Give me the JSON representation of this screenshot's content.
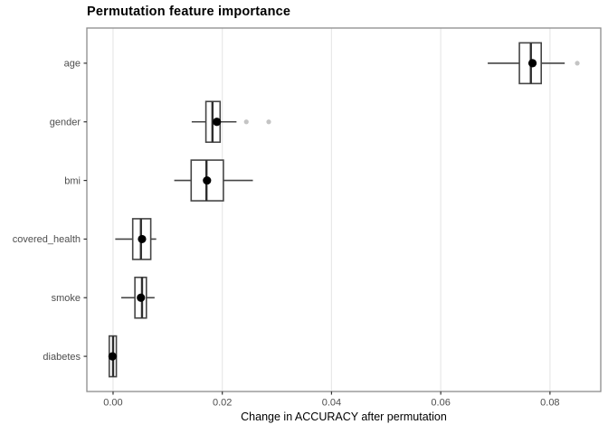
{
  "chart_data": {
    "type": "boxplot",
    "orientation": "horizontal",
    "title": "Permutation feature importance",
    "xlabel": "Change in ACCURACY after permutation",
    "ylabel": "",
    "xlim": [
      -0.0048,
      0.0893
    ],
    "x_ticks": [
      0,
      0.02,
      0.04,
      0.06,
      0.08
    ],
    "x_tick_labels": [
      "0.00",
      "0.02",
      "0.04",
      "0.06",
      "0.08"
    ],
    "grid": "vertical-major-only",
    "legend": "none",
    "categories": [
      "age",
      "gender",
      "bmi",
      "covered_health",
      "smoke",
      "diabetes"
    ],
    "series": [
      {
        "name": "age",
        "whisker_low": 0.0686,
        "q1": 0.0744,
        "median": 0.0765,
        "q3": 0.0784,
        "whisker_high": 0.0827,
        "mean": 0.0768,
        "outliers": [
          0.085
        ]
      },
      {
        "name": "gender",
        "whisker_low": 0.0144,
        "q1": 0.017,
        "median": 0.0182,
        "q3": 0.0196,
        "whisker_high": 0.0226,
        "mean": 0.019,
        "outliers": [
          0.0244,
          0.0285
        ]
      },
      {
        "name": "bmi",
        "whisker_low": 0.0112,
        "q1": 0.0143,
        "median": 0.0171,
        "q3": 0.0202,
        "whisker_high": 0.0256,
        "mean": 0.0172,
        "outliers": []
      },
      {
        "name": "covered_health",
        "whisker_low": 0.0004,
        "q1": 0.0036,
        "median": 0.0051,
        "q3": 0.0069,
        "whisker_high": 0.0079,
        "mean": 0.0053,
        "outliers": []
      },
      {
        "name": "smoke",
        "whisker_low": 0.0015,
        "q1": 0.004,
        "median": 0.0053,
        "q3": 0.0061,
        "whisker_high": 0.0076,
        "mean": 0.0051,
        "outliers": []
      },
      {
        "name": "diabetes",
        "whisker_low": -0.0008,
        "q1": -0.0007,
        "median": 0.0,
        "q3": 0.0006,
        "whisker_high": 0.0007,
        "mean": -0.0001,
        "outliers": []
      }
    ],
    "colors": {
      "box_stroke": "#454545",
      "median_stroke": "#2e2e2e",
      "mean_dot": "#000000",
      "outlier_dot": "#c4c4c4",
      "gridline": "#e8e8e8",
      "panel_border": "#8c8c8c",
      "tick_mark": "#333333",
      "tick_label": "#4d4d4d",
      "panel_bg": "#ffffff"
    }
  }
}
